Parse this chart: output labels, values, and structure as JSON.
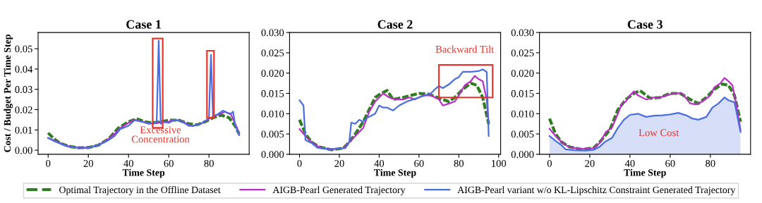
{
  "chart_data": [
    {
      "type": "line",
      "title": "Case 1",
      "xlabel": "Time Step",
      "ylabel": "Cost / Budget Per Time Step",
      "xlim": [
        -5,
        100
      ],
      "xticks": [
        0,
        20,
        40,
        60,
        80
      ],
      "ylim": [
        -0.002,
        0.058
      ],
      "yticks": [
        {
          "value": 0,
          "label": "0.00"
        },
        {
          "value": 0.01,
          "label": "0.01"
        },
        {
          "value": 0.02,
          "label": "0.02"
        },
        {
          "value": 0.03,
          "label": "0.03"
        },
        {
          "value": 0.04,
          "label": "0.04"
        },
        {
          "value": 0.05,
          "label": "0.05"
        }
      ],
      "legend": "bottom",
      "grid": false,
      "annotations": [
        "Excessive\nConcentration"
      ],
      "series": [
        {
          "name": "Optimal Trajectory in the Offline Dataset",
          "color": "#2e7d1e",
          "line_style": "dashed",
          "x": [
            0,
            3,
            6,
            10,
            15,
            20,
            25,
            30,
            35,
            40,
            44,
            48,
            52,
            56,
            60,
            65,
            70,
            74,
            78,
            82,
            86,
            90,
            93,
            95
          ],
          "values": [
            0.0085,
            0.0055,
            0.0035,
            0.002,
            0.0012,
            0.0013,
            0.0025,
            0.0055,
            0.011,
            0.014,
            0.0155,
            0.014,
            0.0135,
            0.014,
            0.0148,
            0.0148,
            0.013,
            0.0125,
            0.014,
            0.016,
            0.0173,
            0.016,
            0.012,
            0.008
          ]
        },
        {
          "name": "AIGB-Pearl Generated Trajectory",
          "color": "#b92fc6",
          "line_style": "solid",
          "x": [
            0,
            3,
            6,
            10,
            15,
            20,
            25,
            30,
            33,
            36,
            40,
            43,
            47,
            52,
            56,
            60,
            62,
            66,
            70,
            72,
            76,
            80,
            83,
            86,
            88,
            91,
            94,
            95
          ],
          "values": [
            0.006,
            0.0048,
            0.0035,
            0.002,
            0.0012,
            0.0012,
            0.0025,
            0.0055,
            0.008,
            0.011,
            0.0135,
            0.015,
            0.014,
            0.013,
            0.0138,
            0.014,
            0.015,
            0.0145,
            0.0125,
            0.012,
            0.013,
            0.0155,
            0.017,
            0.018,
            0.019,
            0.0175,
            0.011,
            0.0075
          ]
        },
        {
          "name": "AIGB-Pearl variant w/o KL-Lipschitz Constraint Generated Trajectory",
          "color": "#4a6ee0",
          "line_style": "solid",
          "x": [
            0,
            3,
            6,
            10,
            15,
            20,
            25,
            30,
            33,
            36,
            40,
            43,
            47,
            50,
            53,
            54,
            55,
            56,
            57,
            60,
            63,
            66,
            70,
            72,
            76,
            79,
            80,
            81,
            82,
            84,
            87,
            89,
            91,
            92,
            93,
            95
          ],
          "values": [
            0.006,
            0.0045,
            0.0033,
            0.0018,
            0.0012,
            0.0012,
            0.0025,
            0.005,
            0.007,
            0.0105,
            0.012,
            0.0148,
            0.014,
            0.013,
            0.0135,
            0.014,
            0.054,
            0.013,
            0.014,
            0.0135,
            0.015,
            0.0145,
            0.012,
            0.012,
            0.013,
            0.015,
            0.016,
            0.047,
            0.017,
            0.0175,
            0.0195,
            0.0185,
            0.018,
            0.019,
            0.0125,
            0.0075
          ]
        }
      ]
    },
    {
      "type": "line",
      "title": "Case 2",
      "xlabel": "Time Step",
      "xlim": [
        -5,
        101
      ],
      "xticks": [
        0,
        20,
        40,
        60,
        80,
        100
      ],
      "ylim": [
        0,
        0.03
      ],
      "yticks": [
        {
          "value": 0,
          "label": "0.000"
        },
        {
          "value": 0.005,
          "label": "0.005"
        },
        {
          "value": 0.01,
          "label": "0.010"
        },
        {
          "value": 0.015,
          "label": "0.015"
        },
        {
          "value": 0.02,
          "label": "0.020"
        },
        {
          "value": 0.025,
          "label": "0.025"
        },
        {
          "value": 0.03,
          "label": "0.030"
        }
      ],
      "grid": false,
      "annotations": [
        "Backward Tilt"
      ],
      "series": [
        {
          "color": "#2e7d1e",
          "line_style": "dashed",
          "x": [
            0,
            3,
            6,
            10,
            16,
            22,
            25,
            28,
            32,
            35,
            38,
            41,
            44,
            47,
            52,
            56,
            60,
            65,
            70,
            75,
            78,
            82,
            86,
            89,
            92,
            95
          ],
          "values": [
            0.0085,
            0.005,
            0.003,
            0.0018,
            0.0011,
            0.0015,
            0.003,
            0.005,
            0.008,
            0.011,
            0.014,
            0.015,
            0.0157,
            0.0135,
            0.014,
            0.0145,
            0.015,
            0.0148,
            0.0138,
            0.013,
            0.014,
            0.016,
            0.0175,
            0.017,
            0.014,
            0.0075
          ]
        },
        {
          "color": "#b92fc6",
          "line_style": "solid",
          "x": [
            0,
            3,
            6,
            10,
            16,
            22,
            25,
            28,
            32,
            35,
            38,
            42,
            45,
            48,
            52,
            55,
            58,
            62,
            66,
            70,
            72,
            75,
            78,
            80,
            83,
            86,
            88,
            90,
            92,
            94,
            95
          ],
          "values": [
            0.0062,
            0.0045,
            0.003,
            0.0017,
            0.0012,
            0.0015,
            0.003,
            0.0045,
            0.0065,
            0.0105,
            0.013,
            0.015,
            0.014,
            0.0135,
            0.0135,
            0.014,
            0.0135,
            0.0145,
            0.0145,
            0.0135,
            0.012,
            0.0125,
            0.013,
            0.0145,
            0.017,
            0.018,
            0.0193,
            0.0185,
            0.018,
            0.0135,
            0.0075
          ]
        },
        {
          "color": "#4a6ee0",
          "line_style": "solid",
          "x": [
            0,
            2,
            3,
            6,
            9,
            15,
            23,
            25,
            26,
            28,
            30,
            32,
            34,
            36,
            38,
            40,
            42,
            44,
            47,
            50,
            54,
            57,
            60,
            63,
            66,
            68,
            70,
            72,
            75,
            78,
            80,
            82,
            86,
            90,
            92,
            94,
            95
          ],
          "values": [
            0.0133,
            0.012,
            0.0035,
            0.0028,
            0.0016,
            0.0012,
            0.0015,
            0.003,
            0.0078,
            0.0075,
            0.0085,
            0.008,
            0.009,
            0.0095,
            0.01,
            0.012,
            0.0115,
            0.0115,
            0.0108,
            0.012,
            0.013,
            0.0135,
            0.014,
            0.0145,
            0.015,
            0.016,
            0.0168,
            0.0163,
            0.0172,
            0.0185,
            0.019,
            0.0203,
            0.0203,
            0.0205,
            0.0209,
            0.0203,
            0.0045
          ]
        }
      ]
    },
    {
      "type": "line",
      "title": "Case 3",
      "xlabel": "Time Step",
      "xlim": [
        -5,
        100
      ],
      "xticks": [
        0,
        20,
        40,
        60,
        80
      ],
      "ylim": [
        0,
        0.03
      ],
      "yticks": [
        {
          "value": 0,
          "label": "0.000"
        },
        {
          "value": 0.005,
          "label": "0.005"
        },
        {
          "value": 0.01,
          "label": "0.010"
        },
        {
          "value": 0.015,
          "label": "0.015"
        },
        {
          "value": 0.02,
          "label": "0.020"
        },
        {
          "value": 0.025,
          "label": "0.025"
        },
        {
          "value": 0.03,
          "label": "0.030"
        }
      ],
      "grid": false,
      "annotations": [
        "Low Cost"
      ],
      "series": [
        {
          "color": "#2e7d1e",
          "line_style": "dashed",
          "x": [
            0,
            3,
            6,
            10,
            16,
            22,
            25,
            30,
            34,
            38,
            42,
            45,
            50,
            55,
            60,
            65,
            70,
            74,
            78,
            82,
            86,
            89,
            92,
            95
          ],
          "values": [
            0.0088,
            0.005,
            0.003,
            0.0018,
            0.0012,
            0.0016,
            0.003,
            0.006,
            0.011,
            0.0135,
            0.015,
            0.0157,
            0.0138,
            0.014,
            0.015,
            0.015,
            0.0135,
            0.0125,
            0.014,
            0.016,
            0.0173,
            0.017,
            0.0145,
            0.008
          ]
        },
        {
          "color": "#b92fc6",
          "line_style": "solid",
          "x": [
            0,
            3,
            6,
            10,
            16,
            22,
            25,
            28,
            31,
            34,
            36,
            38,
            40,
            42,
            44,
            48,
            52,
            55,
            58,
            62,
            66,
            70,
            73,
            76,
            80,
            82,
            85,
            87,
            89,
            91,
            93,
            95
          ],
          "values": [
            0.0063,
            0.0045,
            0.003,
            0.0017,
            0.0013,
            0.0015,
            0.0028,
            0.0055,
            0.0065,
            0.01,
            0.0125,
            0.013,
            0.0145,
            0.0155,
            0.0145,
            0.0135,
            0.014,
            0.014,
            0.0145,
            0.015,
            0.015,
            0.0125,
            0.0123,
            0.013,
            0.0145,
            0.0165,
            0.0175,
            0.0188,
            0.018,
            0.017,
            0.012,
            0.006
          ]
        },
        {
          "type": "area",
          "color": "#4a6ee0",
          "line_style": "solid",
          "x": [
            0,
            3,
            6,
            8,
            12,
            18,
            22,
            25,
            28,
            31,
            34,
            37,
            40,
            44,
            48,
            52,
            56,
            60,
            64,
            68,
            71,
            74,
            78,
            81,
            84,
            87,
            89,
            92,
            95
          ],
          "values": [
            0.0045,
            0.0033,
            0.0022,
            0.0012,
            0.001,
            0.0009,
            0.0011,
            0.0019,
            0.0032,
            0.004,
            0.0065,
            0.0085,
            0.0097,
            0.01,
            0.0092,
            0.0095,
            0.0096,
            0.0098,
            0.0102,
            0.0096,
            0.0088,
            0.0085,
            0.0092,
            0.0115,
            0.0125,
            0.014,
            0.0133,
            0.0128,
            0.0055
          ]
        }
      ]
    }
  ]
}
